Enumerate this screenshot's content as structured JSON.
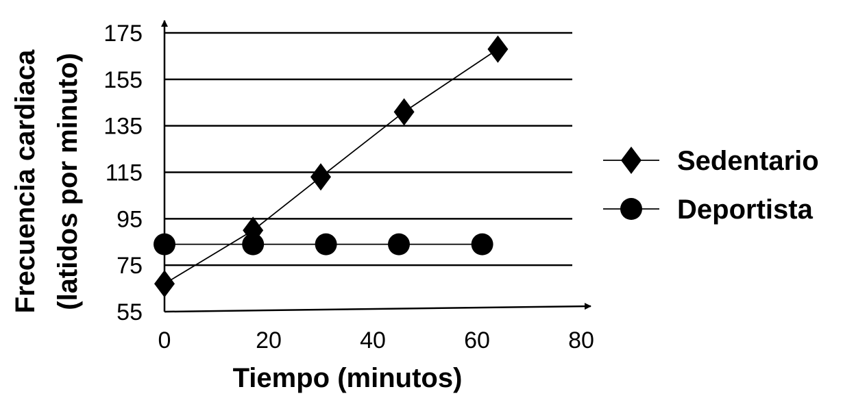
{
  "chart_data": {
    "type": "line",
    "ylabel": [
      "Frecuencia cardiaca",
      "(latidos por minuto)"
    ],
    "xlabel": "Tiempo (minutos)",
    "xlim": [
      0,
      80
    ],
    "ylim": [
      55,
      175
    ],
    "x_ticks": [
      0,
      20,
      40,
      60,
      80
    ],
    "y_ticks": [
      55,
      75,
      95,
      115,
      135,
      155,
      175
    ],
    "grid": true,
    "legend_position": "right",
    "series": [
      {
        "name": "Sedentario",
        "marker": "diamond",
        "color": "#000000",
        "x": [
          0,
          17,
          30,
          46,
          64
        ],
        "y": [
          67,
          90,
          113,
          141,
          168
        ]
      },
      {
        "name": "Deportista",
        "marker": "circle",
        "color": "#000000",
        "x": [
          0,
          17,
          31,
          45,
          61
        ],
        "y": [
          84,
          84,
          84,
          84,
          84
        ]
      }
    ]
  }
}
